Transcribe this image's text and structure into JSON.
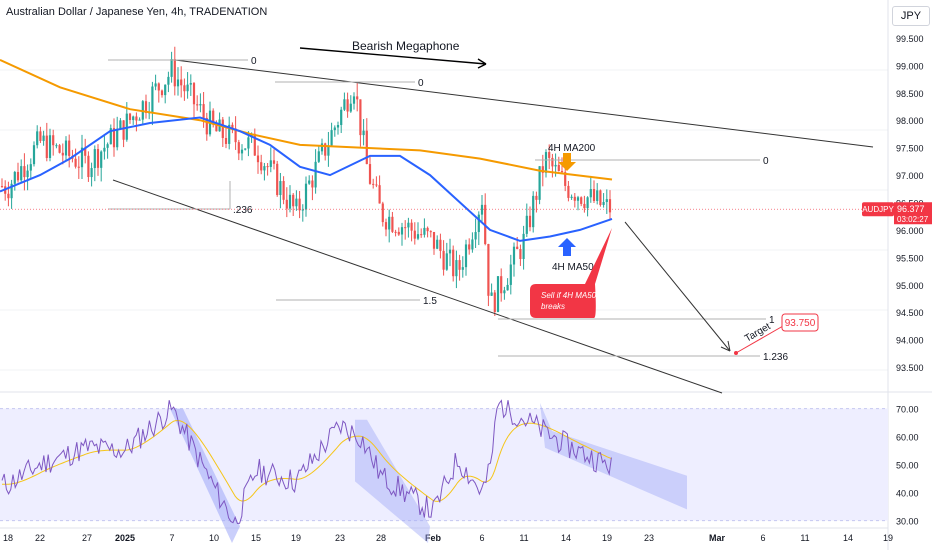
{
  "header": {
    "title": "Australian Dollar / Japanese Yen, 4h, TRADENATION",
    "currency": "JPY"
  },
  "price_tag": {
    "symbol": "AUDJPY",
    "price": "96.377",
    "countdown": "03:02:27",
    "color": "#f23645"
  },
  "annotations": {
    "megaphone": "Bearish Megaphone",
    "ma200": "4H MA200",
    "ma50": "4H MA50",
    "sell_note": [
      "Sell if 4H MA50",
      "breaks"
    ],
    "target_label": "Target",
    "target_value": "93.750",
    "fib_labels": [
      "0",
      "0",
      ".236",
      "0",
      "1.5",
      "1",
      "1.236"
    ]
  },
  "colors": {
    "ma200": "#f59a00",
    "ma50": "#2962ff",
    "up_candle": "#26a69a",
    "down_candle": "#ef5350",
    "rsi": "#7e57c2",
    "rsi_ma": "#f5c518",
    "channel_fill": "#9fa8f7",
    "arrow_orange": "#f59a00",
    "arrow_blue": "#2962ff"
  },
  "chart_data": [
    {
      "type": "candlestick",
      "title": "Australian Dollar / Japanese Yen, 4h, TRADENATION",
      "y_axis_ticks": [
        "99.500",
        "99.000",
        "98.500",
        "98.000",
        "97.500",
        "97.000",
        "96.500",
        "96.000",
        "95.500",
        "95.000",
        "94.500",
        "94.000",
        "93.500"
      ],
      "ylim": [
        93.3,
        99.9
      ],
      "x_axis_ticks": [
        "18",
        "22",
        "27",
        "2025",
        "7",
        "10",
        "15",
        "19",
        "23",
        "28",
        "Feb",
        "6",
        "11",
        "14",
        "19",
        "23",
        "Mar",
        "6",
        "11",
        "14",
        "19"
      ],
      "price_path": [
        [
          "18",
          96.8
        ],
        [
          "22",
          97.6
        ],
        [
          "27",
          97.2
        ],
        [
          "2025",
          97.9
        ],
        [
          "7",
          98.9
        ],
        [
          "10",
          97.8
        ],
        [
          "15",
          97.5
        ],
        [
          "19",
          96.3
        ],
        [
          "23",
          98.1
        ],
        [
          "24",
          98.7
        ],
        [
          "26",
          97.1
        ],
        [
          "28",
          96.3
        ],
        [
          "Feb",
          95.8
        ],
        [
          "3",
          95.2
        ],
        [
          "6",
          96.6
        ],
        [
          "10",
          94.6
        ],
        [
          "11",
          95.8
        ],
        [
          "12",
          97.3
        ],
        [
          "14",
          96.8
        ],
        [
          "19",
          96.4
        ]
      ],
      "series": [
        {
          "name": "4H MA200",
          "values_start": 99.0,
          "values_end": 96.9
        },
        {
          "name": "4H MA50",
          "values_start": 96.8,
          "values_end": 96.15
        }
      ],
      "last_price": 96.377,
      "target": 93.75
    },
    {
      "type": "line",
      "title": "RSI",
      "y_axis_ticks": [
        "70.00",
        "60.00",
        "50.00",
        "40.00",
        "30.00"
      ],
      "ylim": [
        27,
        73
      ],
      "band": [
        30,
        70
      ],
      "rsi_keypoints": [
        [
          "18",
          43
        ],
        [
          "22",
          50
        ],
        [
          "27",
          56
        ],
        [
          "2025",
          55
        ],
        [
          "7",
          70
        ],
        [
          "10",
          42
        ],
        [
          "12",
          29
        ],
        [
          "15",
          48
        ],
        [
          "19",
          44
        ],
        [
          "23",
          64
        ],
        [
          "26",
          60
        ],
        [
          "28",
          46
        ],
        [
          "Feb",
          33
        ],
        [
          "3",
          52
        ],
        [
          "6",
          40
        ],
        [
          "10",
          48
        ],
        [
          "12",
          72
        ],
        [
          "14",
          57
        ],
        [
          "19",
          50
        ]
      ]
    }
  ]
}
